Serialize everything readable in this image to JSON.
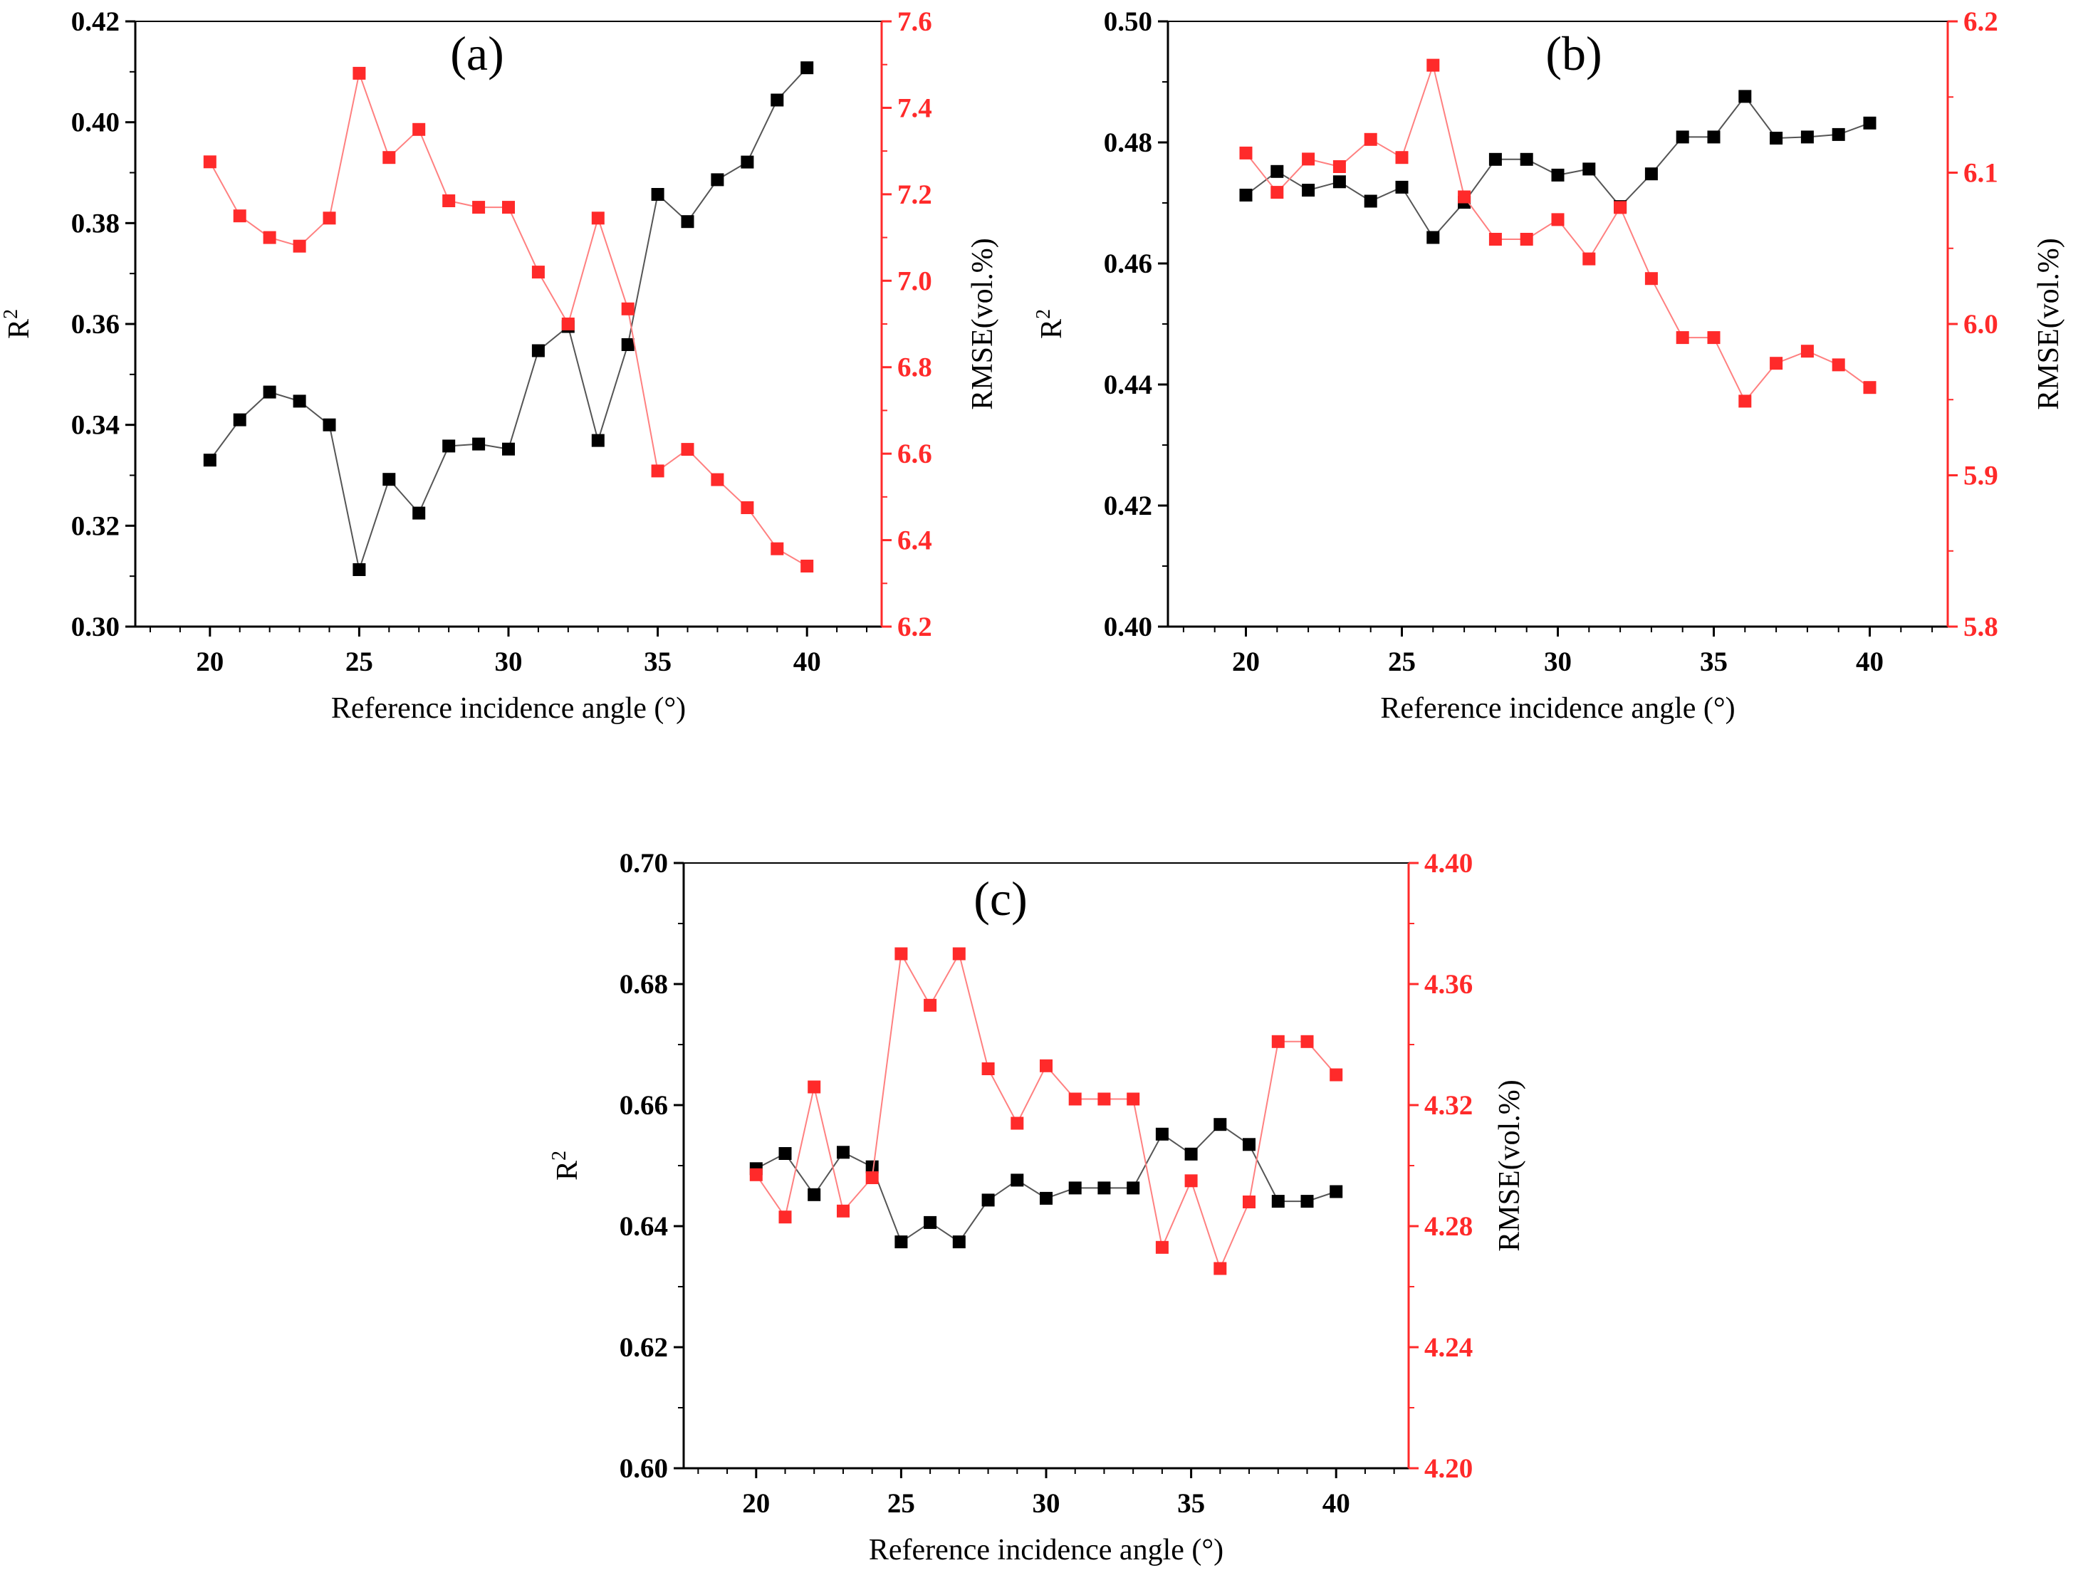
{
  "colors": {
    "r2": "#000000",
    "rmse": "#ff2a2a",
    "rmse_line": "#ff8080",
    "r2_line": "#555555",
    "axis": "#000000"
  },
  "chart_data": [
    {
      "type": "line",
      "panel_label": "(a)",
      "xlabel": "Reference incidence angle (°)",
      "ylabel": "R",
      "ylabel_sup": "2",
      "y2label": "RMSE(vol.%)",
      "x": [
        20,
        21,
        22,
        23,
        24,
        25,
        26,
        27,
        28,
        29,
        30,
        31,
        32,
        33,
        34,
        35,
        36,
        37,
        38,
        39,
        40
      ],
      "xlim": [
        17.5,
        42.5
      ],
      "xticks": [
        20,
        25,
        30,
        35,
        40
      ],
      "xticklabels": [
        "20",
        "25",
        "30",
        "35",
        "40"
      ],
      "ylim": [
        0.3,
        0.42
      ],
      "yticks": [
        0.3,
        0.32,
        0.34,
        0.36,
        0.38,
        0.4,
        0.42
      ],
      "yticklabels": [
        "0.30",
        "0.32",
        "0.34",
        "0.36",
        "0.38",
        "0.40",
        "0.42"
      ],
      "y2lim": [
        6.2,
        7.6
      ],
      "y2ticks": [
        6.2,
        6.4,
        6.6,
        6.8,
        7.0,
        7.2,
        7.4,
        7.6
      ],
      "y2ticklabels": [
        "6.2",
        "6.4",
        "6.6",
        "6.8",
        "7.0",
        "7.2",
        "7.4",
        "7.6"
      ],
      "series": [
        {
          "name": "R2",
          "axis": "left",
          "values": [
            0.333,
            0.341,
            0.3465,
            0.3447,
            0.34,
            0.3113,
            0.3292,
            0.3225,
            0.3358,
            0.3362,
            0.3352,
            0.3547,
            0.3595,
            0.3369,
            0.3559,
            0.3857,
            0.3803,
            0.3886,
            0.3921,
            0.4044,
            0.4108
          ]
        },
        {
          "name": "RMSE",
          "axis": "right",
          "values": [
            7.275,
            7.15,
            7.1,
            7.08,
            7.145,
            7.48,
            7.285,
            7.35,
            7.185,
            7.17,
            7.17,
            7.02,
            6.9,
            7.145,
            6.935,
            6.56,
            6.61,
            6.54,
            6.475,
            6.38,
            6.34
          ]
        }
      ]
    },
    {
      "type": "line",
      "panel_label": "(b)",
      "xlabel": "Reference incidence angle (°)",
      "ylabel": "R",
      "ylabel_sup": "2",
      "y2label": "RMSE(vol.%)",
      "x": [
        20,
        21,
        22,
        23,
        24,
        25,
        26,
        27,
        28,
        29,
        30,
        31,
        32,
        33,
        34,
        35,
        36,
        37,
        38,
        39,
        40
      ],
      "xlim": [
        17.5,
        42.5
      ],
      "xticks": [
        20,
        25,
        30,
        35,
        40
      ],
      "xticklabels": [
        "20",
        "25",
        "30",
        "35",
        "40"
      ],
      "ylim": [
        0.4,
        0.5
      ],
      "yticks": [
        0.4,
        0.42,
        0.44,
        0.46,
        0.48,
        0.5
      ],
      "yticklabels": [
        "0.40",
        "0.42",
        "0.44",
        "0.46",
        "0.48",
        "0.50"
      ],
      "y2lim": [
        5.8,
        6.2
      ],
      "y2ticks": [
        5.8,
        5.9,
        6.0,
        6.1,
        6.2
      ],
      "y2ticklabels": [
        "5.8",
        "5.9",
        "6.0",
        "6.1",
        "6.2"
      ],
      "series": [
        {
          "name": "R2",
          "axis": "left",
          "values": [
            0.4713,
            0.4752,
            0.4721,
            0.4735,
            0.4703,
            0.4726,
            0.4643,
            0.4701,
            0.4772,
            0.4772,
            0.4746,
            0.4756,
            0.4694,
            0.4748,
            0.4809,
            0.4809,
            0.4876,
            0.4807,
            0.4809,
            0.4813,
            0.4832
          ]
        },
        {
          "name": "RMSE",
          "axis": "right",
          "values": [
            6.113,
            6.087,
            6.109,
            6.104,
            6.122,
            6.11,
            6.171,
            6.084,
            6.056,
            6.056,
            6.069,
            6.043,
            6.077,
            6.03,
            5.991,
            5.991,
            5.949,
            5.974,
            5.982,
            5.973,
            5.958
          ]
        }
      ]
    },
    {
      "type": "line",
      "panel_label": "(c)",
      "xlabel": "Reference incidence angle (°)",
      "ylabel": "R",
      "ylabel_sup": "2",
      "y2label": "RMSE(vol.%)",
      "x": [
        20,
        21,
        22,
        23,
        24,
        25,
        26,
        27,
        28,
        29,
        30,
        31,
        32,
        33,
        34,
        35,
        36,
        37,
        38,
        39,
        40
      ],
      "xlim": [
        17.5,
        42.5
      ],
      "xticks": [
        20,
        25,
        30,
        35,
        40
      ],
      "xticklabels": [
        "20",
        "25",
        "30",
        "35",
        "40"
      ],
      "ylim": [
        0.6,
        0.7
      ],
      "yticks": [
        0.6,
        0.62,
        0.64,
        0.66,
        0.68,
        0.7
      ],
      "yticklabels": [
        "0.60",
        "0.62",
        "0.64",
        "0.66",
        "0.68",
        "0.70"
      ],
      "y2lim": [
        4.2,
        4.4
      ],
      "y2ticks": [
        4.2,
        4.24,
        4.28,
        4.32,
        4.36,
        4.4
      ],
      "y2ticklabels": [
        "4.20",
        "4.24",
        "4.28",
        "4.32",
        "4.36",
        "4.40"
      ],
      "series": [
        {
          "name": "R2",
          "axis": "left",
          "values": [
            0.6495,
            0.652,
            0.6452,
            0.6522,
            0.6498,
            0.6374,
            0.6406,
            0.6374,
            0.6443,
            0.6476,
            0.6446,
            0.6463,
            0.6463,
            0.6463,
            0.6552,
            0.6519,
            0.6568,
            0.6535,
            0.6441,
            0.6441,
            0.6457
          ]
        },
        {
          "name": "RMSE",
          "axis": "right",
          "values": [
            4.297,
            4.283,
            4.326,
            4.285,
            4.296,
            4.37,
            4.353,
            4.37,
            4.332,
            4.314,
            4.333,
            4.322,
            4.322,
            4.322,
            4.273,
            4.295,
            4.266,
            4.288,
            4.341,
            4.341,
            4.33
          ]
        }
      ]
    }
  ]
}
